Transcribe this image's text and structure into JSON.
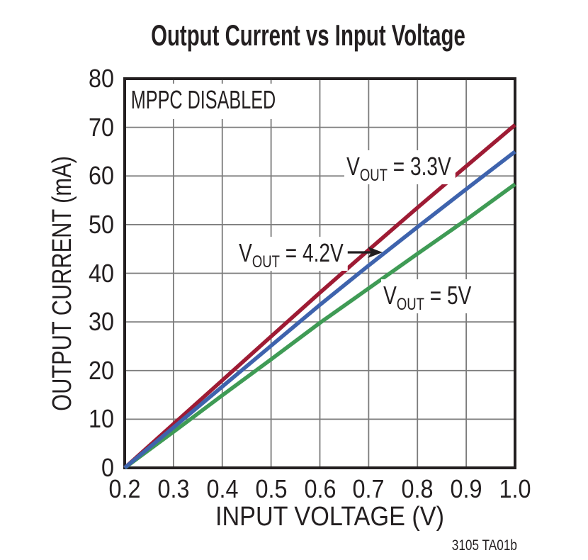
{
  "title": "Output Current vs Input Voltage",
  "watermark": "3105 TA01b",
  "axes": {
    "xlabel": "INPUT VOLTAGE (V)",
    "ylabel": "OUTPUT CURRENT (mA)"
  },
  "annotations": {
    "mppc": "MPPC DISABLED",
    "series_labels": [
      {
        "prefix": "V",
        "sub": "OUT",
        "suffix": " = 3.3V"
      },
      {
        "prefix": "V",
        "sub": "OUT",
        "suffix": " = 4.2V"
      },
      {
        "prefix": "V",
        "sub": "OUT",
        "suffix": " = 5V"
      }
    ]
  },
  "chart_data": {
    "type": "line",
    "title": "Output Current vs Input Voltage",
    "xlabel": "INPUT VOLTAGE (V)",
    "ylabel": "OUTPUT CURRENT (mA)",
    "annotation": "MPPC DISABLED",
    "xlim": [
      0.2,
      1.0
    ],
    "ylim": [
      0,
      80
    ],
    "grid": true,
    "legend_position": "inline-annotations",
    "x_ticks": [
      {
        "value": 0.2,
        "label": "0.2"
      },
      {
        "value": 0.3,
        "label": "0.3"
      },
      {
        "value": 0.4,
        "label": "0.4"
      },
      {
        "value": 0.5,
        "label": "0.5"
      },
      {
        "value": 0.6,
        "label": "0.6"
      },
      {
        "value": 0.7,
        "label": "0.7"
      },
      {
        "value": 0.8,
        "label": "0.8"
      },
      {
        "value": 0.9,
        "label": "0.9"
      },
      {
        "value": 1.0,
        "label": "1.0"
      }
    ],
    "y_ticks": [
      {
        "value": 0,
        "label": "0"
      },
      {
        "value": 10,
        "label": "10"
      },
      {
        "value": 20,
        "label": "20"
      },
      {
        "value": 30,
        "label": "30"
      },
      {
        "value": 40,
        "label": "40"
      },
      {
        "value": 50,
        "label": "50"
      },
      {
        "value": 60,
        "label": "60"
      },
      {
        "value": 70,
        "label": "70"
      },
      {
        "value": 80,
        "label": "80"
      }
    ],
    "x": [
      0.2,
      0.3,
      0.4,
      0.5,
      0.6,
      0.7,
      0.8,
      0.9,
      1.0
    ],
    "series": [
      {
        "name": "VOUT = 3.3V",
        "color": "#9e1b34",
        "values": [
          0,
          9.0,
          18.0,
          27.0,
          36.0,
          44.8,
          53.5,
          62.0,
          70.5
        ]
      },
      {
        "name": "VOUT = 4.2V",
        "color": "#3e63ad",
        "values": [
          0,
          8.3,
          16.7,
          25.1,
          33.5,
          41.6,
          49.5,
          57.3,
          65.0
        ]
      },
      {
        "name": "VOUT = 5V",
        "color": "#3f9b55",
        "values": [
          0,
          7.4,
          14.9,
          22.3,
          29.8,
          36.9,
          44.0,
          51.0,
          58.3
        ]
      }
    ],
    "colors": {
      "grid": "#7b7b7b",
      "frame": "#231f20",
      "arrow": "#231f20"
    }
  }
}
